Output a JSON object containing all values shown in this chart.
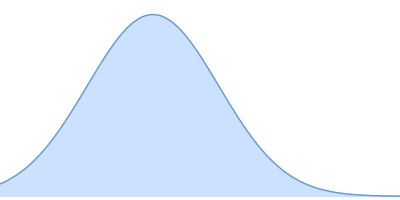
{
  "fill_color": "#cce0ff",
  "line_color": "#6699cc",
  "line_width": 1.0,
  "background_color": "#ffffff",
  "mean": 0.3,
  "std": 0.28,
  "x_min": -0.35,
  "x_max": 1.35,
  "y_min": -0.02,
  "y_max": 1.08
}
